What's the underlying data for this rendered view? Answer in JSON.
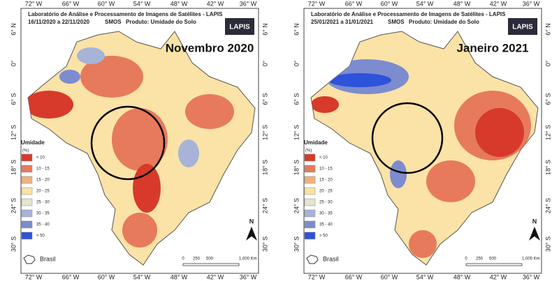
{
  "lab": "Laboratório de Análise e Processamento de Imagens de Satélites - LAPIS",
  "satellite": "SMOS",
  "product": "Produto: Umidade do Solo",
  "logo": "LAPIS",
  "lon_labels": [
    "72° W",
    "66° W",
    "60° W",
    "54° W",
    "48° W",
    "42° W",
    "36° W"
  ],
  "lat_labels": [
    "6° N",
    "0°",
    "6° S",
    "12° S",
    "18° S",
    "24° S",
    "30° S"
  ],
  "legend": {
    "title": "Umidade",
    "unit": "(%)",
    "items": [
      {
        "label": "< 10",
        "color": "#d73a2a"
      },
      {
        "label": "10 - 15",
        "color": "#e77a5c"
      },
      {
        "label": "15 - 20",
        "color": "#f1b17e"
      },
      {
        "label": "20 - 25",
        "color": "#fbe2a6"
      },
      {
        "label": "25 - 30",
        "color": "#e4e4cf"
      },
      {
        "label": "30 - 35",
        "color": "#a8b3d8"
      },
      {
        "label": "35 - 40",
        "color": "#7c8ccf"
      },
      {
        "label": "> 50",
        "color": "#2e52d9"
      }
    ]
  },
  "north": "N",
  "country": "Brasil",
  "scale_labels": [
    "0",
    "250",
    "500",
    "1.000 Km"
  ],
  "panels": [
    {
      "dates": "16/11/2020  a  22/11/2020",
      "title": "Novembro 2020"
    },
    {
      "dates": "25/01/2021  a  31/01/2021",
      "title": "Janeiro 2021"
    }
  ]
}
